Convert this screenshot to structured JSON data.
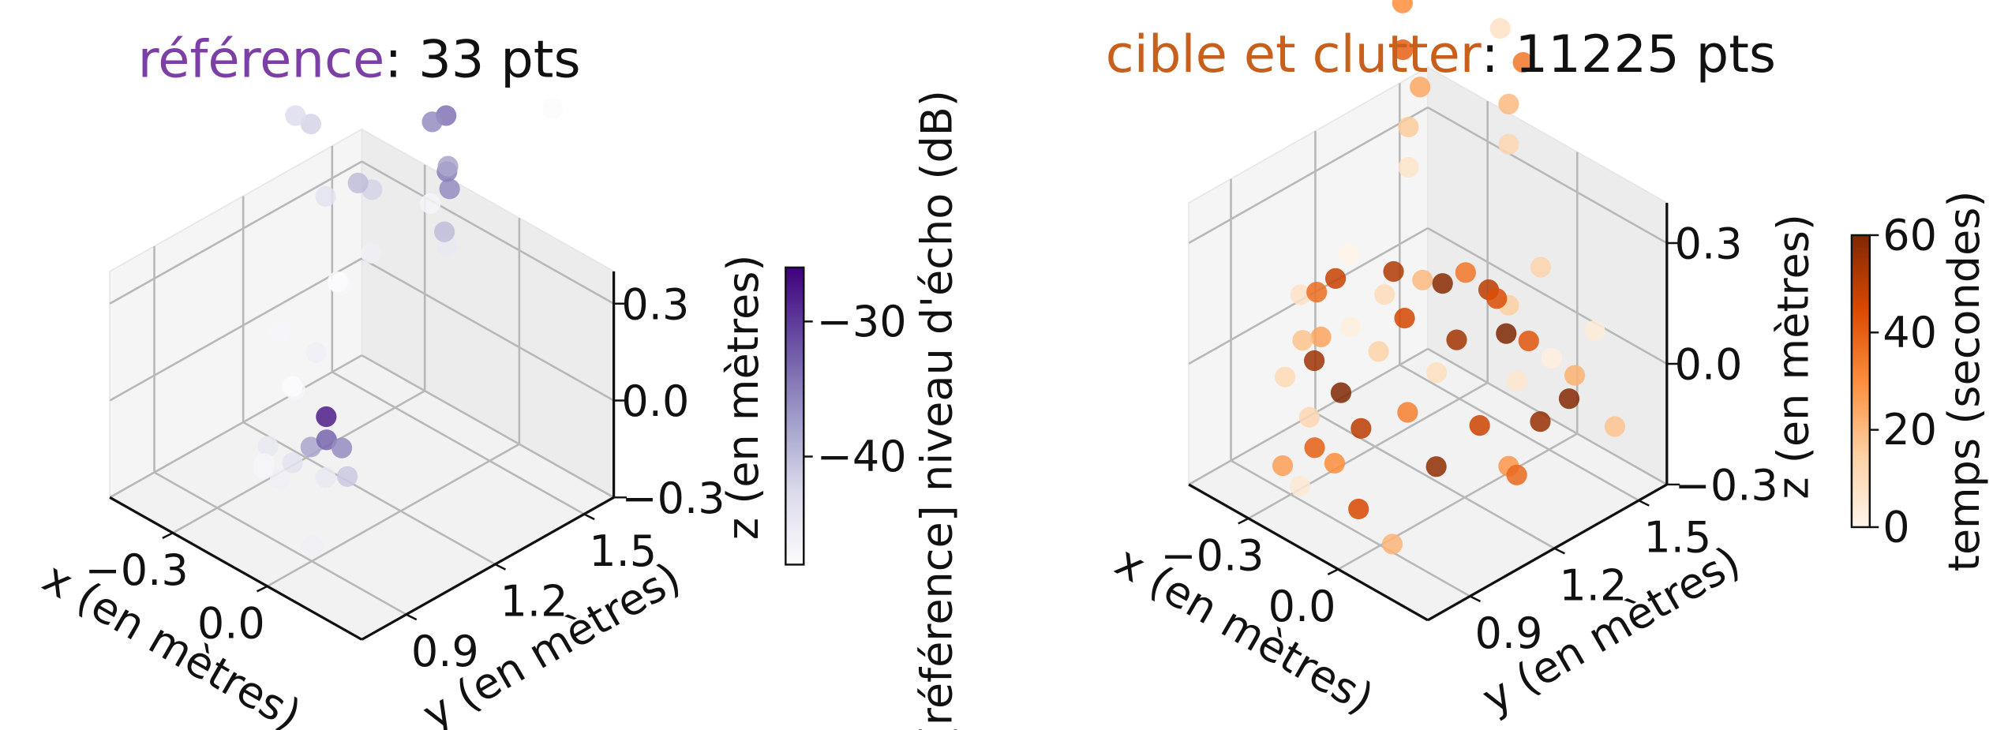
{
  "chart_data": [
    {
      "type": "scatter3d",
      "title_label": "référence",
      "title_rest": ": 33 pts",
      "title_color": "#7b3fa6",
      "xlabel": "x (en mètres)",
      "ylabel": "y (en mètres)",
      "zlabel": "z (en mètres)",
      "colorbar_label": "[référence] niveau d'écho (dB)",
      "xlim": [
        -0.5,
        0.3
      ],
      "ylim": [
        0.75,
        1.6
      ],
      "zlim": [
        -0.3,
        0.4
      ],
      "xticks": [
        {
          "value": -0.3,
          "label": "−0.3"
        },
        {
          "value": 0,
          "label": "0.0"
        }
      ],
      "yticks": [
        0.9,
        1.2,
        1.5
      ],
      "zticks": [
        {
          "value": -0.3,
          "label": "−0.3"
        },
        {
          "value": 0,
          "label": "0.0"
        },
        0.3
      ],
      "clim": [
        -48,
        -26
      ],
      "cticks": [
        {
          "value": -30,
          "label": "−30"
        },
        {
          "value": -40,
          "label": "−40"
        }
      ],
      "colormap": [
        "#fcfbfd",
        "#dadaeb",
        "#9e9ac8",
        "#6a51a3",
        "#3f007d"
      ],
      "x": [
        -0.1,
        -0.08,
        -0.05,
        0.0,
        -0.02,
        0.02,
        -0.12,
        -0.15,
        -0.05,
        0.0,
        -0.1,
        -0.08,
        -0.15,
        -0.05,
        0.0,
        -0.05,
        0.05,
        0.1,
        -0.05,
        -0.08,
        0.1,
        0.12,
        0.08,
        0.1,
        0.15,
        0.05,
        0.1,
        0.0,
        0.2,
        -0.2,
        -0.25,
        -0.2,
        0.05
      ],
      "y": [
        0.9,
        0.92,
        0.95,
        0.95,
        0.97,
        0.98,
        0.88,
        0.9,
        1.0,
        1.02,
        0.95,
        1.0,
        0.95,
        1.05,
        1.1,
        1.0,
        1.05,
        0.95,
        0.95,
        0.93,
        1.25,
        1.22,
        1.28,
        1.25,
        1.2,
        1.3,
        1.2,
        1.3,
        1.5,
        1.2,
        1.1,
        0.95,
        0.85
      ],
      "z": [
        -0.1,
        -0.05,
        0.0,
        0.05,
        0.1,
        0.02,
        0.0,
        -0.08,
        -0.12,
        -0.1,
        0.15,
        0.25,
        0.3,
        0.45,
        0.55,
        0.75,
        0.8,
        0.9,
        1.0,
        1.02,
        0.55,
        0.62,
        0.7,
        0.78,
        0.85,
        0.9,
        0.96,
        0.6,
        0.9,
        0.3,
        0.0,
        -0.15,
        -0.2
      ],
      "c": [
        -46,
        -44,
        -38,
        -33,
        -28,
        -36,
        -45,
        -47,
        -45,
        -41,
        -47,
        -46,
        -47,
        -47,
        -46,
        -44,
        -42,
        -40,
        -42,
        -43,
        -45,
        -40,
        -36,
        -35,
        -38,
        -34,
        -36,
        -47,
        -48,
        -48,
        -48,
        -47,
        -46
      ]
    },
    {
      "type": "scatter3d",
      "title_label": "cible et clutter",
      "title_rest": ": 11225 pts",
      "title_color": "#c8601c",
      "xlabel": "x (en mètres)",
      "ylabel": "y (en mètres)",
      "zlabel": "z (en mètres)",
      "colorbar_label": "temps (secondes)",
      "xlim": [
        -0.5,
        0.3
      ],
      "ylim": [
        0.75,
        1.6
      ],
      "zlim": [
        -0.3,
        0.4
      ],
      "xticks": [
        {
          "value": -0.3,
          "label": "−0.3"
        },
        {
          "value": 0,
          "label": "0.0"
        }
      ],
      "yticks": [
        0.9,
        1.2,
        1.5
      ],
      "zticks": [
        {
          "value": -0.3,
          "label": "−0.3"
        },
        {
          "value": 0,
          "label": "0.0"
        },
        0.3
      ],
      "clim": [
        0,
        60
      ],
      "cticks": [
        0,
        20,
        40,
        60
      ],
      "colormap": [
        "#fff5eb",
        "#fdd0a2",
        "#fd8d3c",
        "#d94801",
        "#7f2704"
      ],
      "x": [
        -0.25,
        -0.22,
        -0.2,
        -0.24,
        -0.18,
        -0.22,
        -0.15,
        -0.2,
        -0.16,
        -0.26,
        -0.12,
        -0.1,
        -0.05,
        0.0,
        0.02,
        0.05,
        -0.08,
        0.08,
        0.1,
        0.12,
        0.1,
        0.14,
        0.1,
        0.15,
        0.08,
        0.12,
        0.18,
        0.05,
        0.0,
        -0.05,
        0.02,
        -0.1,
        0.06,
        0.2,
        0.18,
        -0.28,
        -0.3,
        -0.26,
        -0.2,
        -0.14,
        0.0,
        0.0,
        0.02,
        0.0,
        -0.02,
        0.1,
        0.1,
        0.12,
        0.1,
        0.12,
        0.22,
        -0.02,
        0.04,
        -0.06,
        0.16
      ],
      "y": [
        0.88,
        0.9,
        0.86,
        0.92,
        0.88,
        0.85,
        0.9,
        0.95,
        0.93,
        0.9,
        0.95,
        0.9,
        1.0,
        1.05,
        1.1,
        1.15,
        1.0,
        1.2,
        1.25,
        1.3,
        1.28,
        1.32,
        1.25,
        1.35,
        1.3,
        1.22,
        1.4,
        1.2,
        1.1,
        1.05,
        1.15,
        1.0,
        1.25,
        1.45,
        1.38,
        0.85,
        0.88,
        0.95,
        1.0,
        0.98,
        1.0,
        1.0,
        1.02,
        0.98,
        1.0,
        1.25,
        1.25,
        1.28,
        1.22,
        1.25,
        1.5,
        1.12,
        0.9,
        1.05,
        1.3
      ],
      "z": [
        -0.25,
        -0.15,
        -0.05,
        0.05,
        0.15,
        0.25,
        0.3,
        -0.2,
        0.0,
        0.1,
        -0.28,
        0.2,
        0.32,
        0.3,
        0.28,
        0.3,
        0.25,
        0.25,
        0.2,
        0.1,
        0.0,
        -0.1,
        -0.2,
        0.05,
        -0.25,
        0.15,
        0.0,
        -0.1,
        0.05,
        -0.05,
        0.12,
        0.1,
        0.2,
        0.1,
        -0.05,
        -0.2,
        0.0,
        0.2,
        0.3,
        -0.1,
        0.6,
        0.7,
        0.8,
        0.9,
        1.0,
        0.6,
        0.7,
        0.8,
        0.9,
        1.0,
        -0.15,
        -0.2,
        -0.28,
        0.18,
        0.3
      ],
      "c": [
        5,
        40,
        12,
        55,
        25,
        8,
        48,
        30,
        60,
        18,
        45,
        3,
        52,
        20,
        58,
        35,
        10,
        50,
        15,
        42,
        6,
        56,
        28,
        2,
        38,
        60,
        22,
        47,
        9,
        33,
        54,
        14,
        44,
        4,
        59,
        26,
        11,
        37,
        1,
        50,
        7,
        16,
        24,
        40,
        30,
        12,
        20,
        35,
        8,
        45,
        18,
        57,
        21,
        46,
        13
      ]
    }
  ]
}
